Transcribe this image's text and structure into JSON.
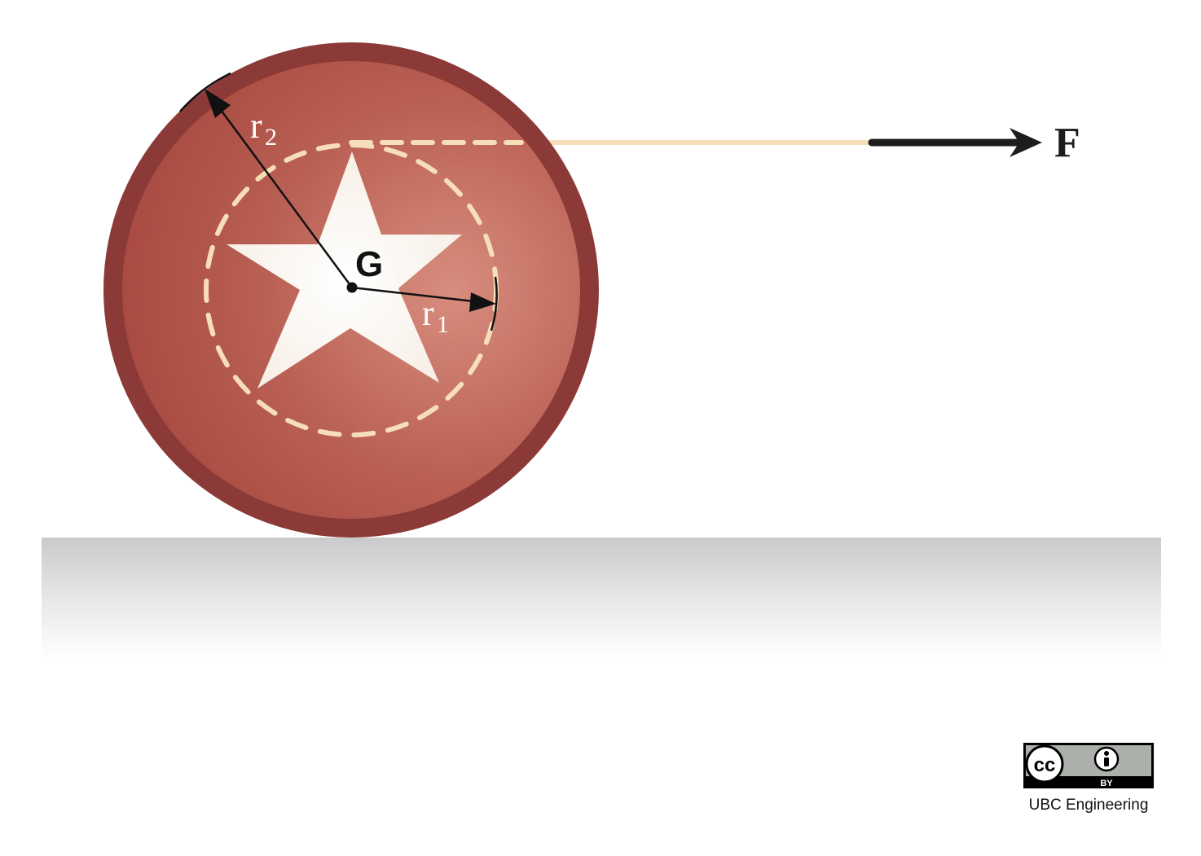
{
  "labels": {
    "center": "G",
    "inner_radius_main": "r",
    "inner_radius_sub": "1",
    "outer_radius_main": "r",
    "outer_radius_sub": "2",
    "force": "F"
  },
  "license": {
    "cc": "cc",
    "by": "BY",
    "credit": "UBC Engineering"
  },
  "colors": {
    "disk_rim": "#8b3a37",
    "disk_face": "#b55a4f",
    "disk_highlight": "#d88d7e",
    "star": "#fbf8f2",
    "cord": "#f6deb8",
    "arrow": "#1d1d1d",
    "ground_top": "#c9cacc"
  }
}
